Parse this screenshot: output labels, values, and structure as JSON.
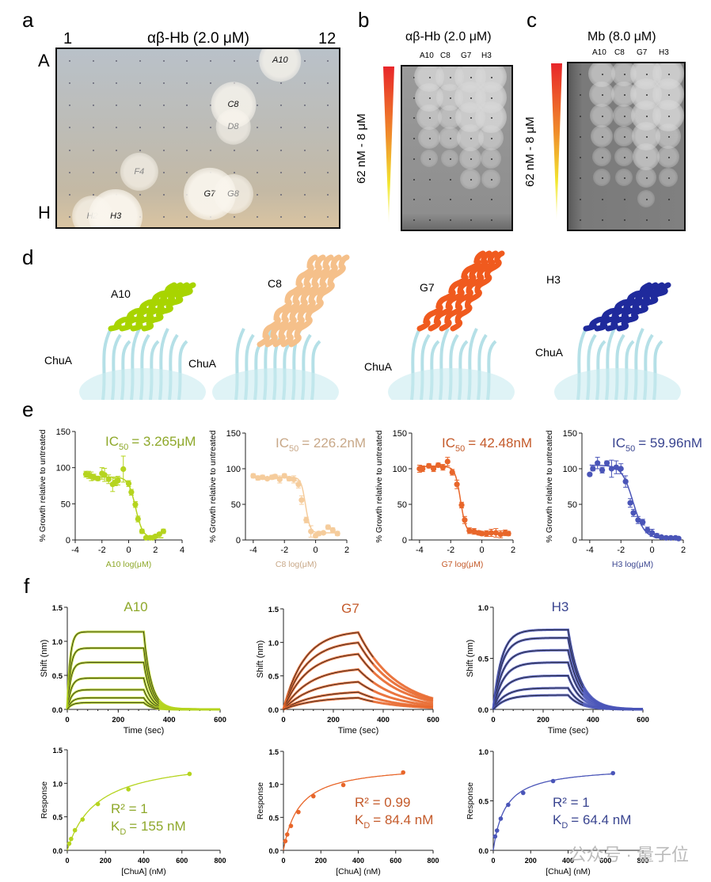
{
  "panels": {
    "a": {
      "letter": "a",
      "title": "αβ-Hb (2.0 μM)",
      "col_start": "1",
      "col_end": "12",
      "row_start": "A",
      "row_end": "H",
      "wells": [
        {
          "label": "A10",
          "row": 0,
          "col": 9,
          "strength": 0.6,
          "dark": true
        },
        {
          "label": "C8",
          "row": 2,
          "col": 7,
          "strength": 0.7,
          "dark": true
        },
        {
          "label": "D8",
          "row": 3,
          "col": 7,
          "strength": 0.35,
          "dark": false
        },
        {
          "label": "F4",
          "row": 5,
          "col": 3,
          "strength": 0.45,
          "dark": false
        },
        {
          "label": "G7",
          "row": 6,
          "col": 6,
          "strength": 0.95,
          "dark": true
        },
        {
          "label": "G8",
          "row": 6,
          "col": 7,
          "strength": 0.5,
          "dark": false
        },
        {
          "label": "H2",
          "row": 7,
          "col": 1,
          "strength": 0.55,
          "dark": false
        },
        {
          "label": "H3",
          "row": 7,
          "col": 2,
          "strength": 1.0,
          "dark": true
        }
      ]
    },
    "b": {
      "letter": "b",
      "title": "αβ-Hb (2.0 μM)",
      "gradient_label": "62 nM - 8 μM",
      "columns": [
        "A10",
        "C8",
        "G7",
        "H3"
      ],
      "halo_strength": [
        [
          0.9,
          0.8,
          0.6,
          0.4,
          0.1,
          0,
          0,
          0
        ],
        [
          0.8,
          0.7,
          0.5,
          0.4,
          0.1,
          0,
          0,
          0
        ],
        [
          1,
          1,
          0.9,
          0.7,
          0.4,
          0.3,
          0,
          0
        ],
        [
          1,
          1,
          1,
          0.6,
          0.3,
          0.2,
          0,
          0
        ]
      ]
    },
    "c": {
      "letter": "c",
      "title": "Mb (8.0 μM)",
      "gradient_label": "62 nM - 8 μM",
      "columns": [
        "A10",
        "C8",
        "G7",
        "H3"
      ],
      "halo_strength": [
        [
          0.7,
          0.6,
          0.5,
          0.4,
          0.2,
          0.1,
          0,
          0
        ],
        [
          0.6,
          0.6,
          0.4,
          0.3,
          0.2,
          0.1,
          0,
          0
        ],
        [
          1,
          1,
          0.9,
          0.8,
          0.7,
          0.3,
          0.1,
          0
        ],
        [
          1,
          1,
          1,
          0.6,
          0.4,
          0.2,
          0,
          0
        ]
      ]
    },
    "d": {
      "letter": "d",
      "structures": [
        {
          "binder": "A10",
          "target": "ChuA",
          "color": "#a8d400"
        },
        {
          "binder": "C8",
          "target": "ChuA",
          "color": "#f5c08a"
        },
        {
          "binder": "G7",
          "target": "ChuA",
          "color": "#f05a1e"
        },
        {
          "binder": "H3",
          "target": "ChuA",
          "color": "#1f2a9c"
        }
      ]
    },
    "e": {
      "letter": "e"
    },
    "f": {
      "letter": "f"
    }
  },
  "colors": {
    "A10": "#b5d41e",
    "A10_text": "#8ea82a",
    "C8": "#f5cc9c",
    "C8_text": "#c8a888",
    "G7": "#e8662a",
    "G7_text": "#c45a2a",
    "H3": "#4a55b8",
    "H3_text": "#3a4590"
  },
  "watermark": "公众号 · 量子位",
  "chart_data": [
    {
      "id": "e-A10",
      "type": "scatter",
      "title": "IC50 = 3.265μM",
      "ic50_prefix": "IC",
      "ic50_sub": "50",
      "ic50_value": "= 3.265μM",
      "xlabel": "A10 log(μM)",
      "ylabel": "% Growth relative to untreated",
      "xlim": [
        -4,
        4
      ],
      "xticks": [
        -4,
        -2,
        0,
        2,
        4
      ],
      "ylim": [
        0,
        150
      ],
      "yticks": [
        0,
        50,
        100,
        150
      ],
      "color_key": "A10",
      "x": [
        -3.2,
        -3.0,
        -2.8,
        -2.6,
        -2.3,
        -2.0,
        -1.8,
        -1.5,
        -1.2,
        -1.0,
        -0.8,
        -0.4,
        0,
        0.2,
        0.5,
        0.7,
        1.0,
        1.3,
        1.6,
        1.8,
        2.0,
        2.3,
        2.6
      ],
      "y": [
        91,
        90,
        88,
        87,
        85,
        92,
        90,
        84,
        77,
        80,
        82,
        98,
        78,
        66,
        49,
        29,
        12,
        3,
        3,
        3,
        5,
        8,
        12
      ],
      "err": [
        4,
        5,
        6,
        4,
        3,
        8,
        9,
        6,
        10,
        5,
        6,
        18,
        4,
        4,
        4,
        4,
        3,
        2,
        2,
        2,
        2,
        2,
        3
      ],
      "fit": {
        "top": 87,
        "bottom": 3,
        "logic50": 0.514,
        "hill": -1.6
      }
    },
    {
      "id": "e-C8",
      "type": "scatter",
      "title": "IC50 = 226.2nM",
      "ic50_prefix": "IC",
      "ic50_sub": "50",
      "ic50_value": "= 226.2nM",
      "xlabel": "C8 log(μM)",
      "ylabel": "% Growth relative to untreated",
      "xlim": [
        -4.5,
        2
      ],
      "xticks": [
        -4,
        -2,
        0,
        2
      ],
      "ylim": [
        0,
        150
      ],
      "yticks": [
        0,
        50,
        100,
        150
      ],
      "color_key": "C8",
      "x": [
        -4.0,
        -3.7,
        -3.4,
        -3.1,
        -2.8,
        -2.6,
        -2.3,
        -2.0,
        -1.7,
        -1.4,
        -1.1,
        -0.9,
        -0.6,
        -0.3,
        0,
        0.2,
        0.5,
        0.8,
        1.1,
        1.4
      ],
      "y": [
        90,
        87,
        88,
        86,
        88,
        89,
        85,
        90,
        86,
        85,
        78,
        56,
        28,
        12,
        6,
        9,
        10,
        18,
        14,
        9
      ],
      "err": [
        3,
        3,
        3,
        2,
        3,
        3,
        5,
        3,
        3,
        5,
        5,
        6,
        4,
        8,
        3,
        3,
        2,
        3,
        3,
        3
      ],
      "fit": {
        "top": 88,
        "bottom": 10,
        "logic50": -0.645,
        "hill": -3.0
      }
    },
    {
      "id": "e-G7",
      "type": "scatter",
      "title": "IC50 = 42.48nM",
      "ic50_prefix": "IC",
      "ic50_sub": "50",
      "ic50_value": "= 42.48nM",
      "xlabel": "G7 log(μM)",
      "ylabel": "% Growth relative to untreated",
      "xlim": [
        -4.5,
        2
      ],
      "xticks": [
        -4,
        -2,
        0,
        2
      ],
      "ylim": [
        0,
        150
      ],
      "yticks": [
        0,
        50,
        100,
        150
      ],
      "color_key": "G7",
      "x": [
        -4.0,
        -3.8,
        -3.4,
        -3.1,
        -2.8,
        -2.5,
        -2.2,
        -1.9,
        -1.6,
        -1.3,
        -1.1,
        -0.8,
        -0.5,
        -0.2,
        0,
        0.3,
        0.6,
        0.9,
        1.2,
        1.5,
        1.7
      ],
      "y": [
        100,
        100,
        104,
        100,
        105,
        102,
        110,
        95,
        78,
        49,
        28,
        13,
        12,
        10,
        9,
        9,
        10,
        10,
        8,
        10,
        9
      ],
      "err": [
        5,
        4,
        3,
        4,
        3,
        4,
        6,
        4,
        6,
        4,
        5,
        4,
        4,
        3,
        3,
        4,
        5,
        6,
        5,
        4,
        3
      ],
      "fit": {
        "top": 103,
        "bottom": 9,
        "logic50": -1.372,
        "hill": -2.5
      }
    },
    {
      "id": "e-H3",
      "type": "scatter",
      "title": "IC50 = 59.96nM",
      "ic50_prefix": "IC",
      "ic50_sub": "50",
      "ic50_value": "= 59.96nM",
      "xlabel": "H3 log(μM)",
      "ylabel": "% Growth relative to untreated",
      "xlim": [
        -4.5,
        2
      ],
      "xticks": [
        -4,
        -2,
        0,
        2
      ],
      "ylim": [
        0,
        150
      ],
      "yticks": [
        0,
        50,
        100,
        150
      ],
      "color_key": "H3",
      "x": [
        -4.0,
        -3.8,
        -3.5,
        -3.2,
        -2.9,
        -2.6,
        -2.3,
        -2.0,
        -1.7,
        -1.4,
        -1.2,
        -0.9,
        -0.6,
        -0.3,
        0,
        0.3,
        0.6,
        0.9,
        1.2,
        1.5,
        1.7
      ],
      "y": [
        92,
        100,
        108,
        98,
        108,
        100,
        102,
        100,
        82,
        52,
        38,
        28,
        25,
        14,
        10,
        6,
        4,
        3,
        3,
        3,
        2
      ],
      "err": [
        2,
        3,
        8,
        4,
        3,
        12,
        9,
        7,
        8,
        6,
        5,
        5,
        4,
        4,
        5,
        3,
        2,
        2,
        2,
        2,
        2
      ],
      "fit": {
        "top": 105,
        "bottom": 2,
        "logic50": -1.222,
        "hill": -1.2
      }
    },
    {
      "id": "f-A10-sensorgram",
      "type": "line",
      "title": "A10",
      "xlabel": "Time (sec)",
      "ylabel": "Shift (nm)",
      "xlim": [
        0,
        600
      ],
      "xticks": [
        0,
        200,
        400,
        600
      ],
      "ylim": [
        0,
        1.5
      ],
      "yticks": [
        0.0,
        0.5,
        1.0,
        1.5
      ],
      "color_key": "A10",
      "assoc_end": 300,
      "kon_rate": 0.09,
      "koff_rate": 0.035,
      "plateaus": [
        1.14,
        0.9,
        0.69,
        0.46,
        0.29,
        0.17,
        0.1
      ]
    },
    {
      "id": "f-G7-sensorgram",
      "type": "line",
      "title": "G7",
      "xlabel": "Time (sec)",
      "ylabel": "Shift (nm)",
      "xlim": [
        0,
        600
      ],
      "xticks": [
        0,
        200,
        400,
        600
      ],
      "ylim": [
        0,
        1.5
      ],
      "yticks": [
        0.0,
        0.5,
        1.0,
        1.5
      ],
      "color_key": "G7",
      "assoc_end": 300,
      "kon_rate": 0.012,
      "koff_rate": 0.0065,
      "plateaus": [
        1.18,
        1.03,
        0.86,
        0.63,
        0.44,
        0.28,
        0.19
      ]
    },
    {
      "id": "f-H3-sensorgram",
      "type": "line",
      "title": "H3",
      "xlabel": "Time (sec)",
      "ylabel": "Shift (nm)",
      "xlim": [
        0,
        600
      ],
      "xticks": [
        0,
        200,
        400,
        600
      ],
      "ylim": [
        0,
        1.0
      ],
      "yticks": [
        0.0,
        0.5,
        1.0
      ],
      "color_key": "H3",
      "assoc_end": 300,
      "kon_rate": 0.03,
      "koff_rate": 0.02,
      "plateaus": [
        0.78,
        0.7,
        0.58,
        0.46,
        0.33,
        0.21,
        0.14
      ]
    },
    {
      "id": "f-A10-steady",
      "type": "scatter",
      "xlabel": "[ChuA] (nM)",
      "ylabel": "Response",
      "xlim": [
        0,
        800
      ],
      "xticks": [
        0,
        200,
        400,
        600,
        800
      ],
      "ylim": [
        0,
        1.5
      ],
      "yticks": [
        0.0,
        0.5,
        1.0,
        1.5
      ],
      "color_key": "A10",
      "r2": "R² = 1",
      "kd_prefix": "K",
      "kd_sub": "D",
      "kd_value": "= 155 nM",
      "x": [
        10,
        20,
        40,
        80,
        160,
        320,
        640
      ],
      "y": [
        0.1,
        0.17,
        0.3,
        0.46,
        0.69,
        0.91,
        1.14
      ],
      "fit": {
        "bmax": 1.41,
        "kd": 155
      }
    },
    {
      "id": "f-G7-steady",
      "type": "scatter",
      "xlabel": "[ChuA] (nM)",
      "ylabel": "Response",
      "xlim": [
        0,
        800
      ],
      "xticks": [
        0,
        200,
        400,
        600,
        800
      ],
      "ylim": [
        0,
        1.5
      ],
      "yticks": [
        0.0,
        0.5,
        1.0,
        1.5
      ],
      "color_key": "G7",
      "r2": "R² = 0.99",
      "kd_prefix": "K",
      "kd_sub": "D",
      "kd_value": "= 84.4 nM",
      "x": [
        10,
        20,
        40,
        80,
        160,
        320,
        640
      ],
      "y": [
        0.14,
        0.24,
        0.37,
        0.58,
        0.82,
        0.99,
        1.18
      ],
      "fit": {
        "bmax": 1.31,
        "kd": 84.4
      }
    },
    {
      "id": "f-H3-steady",
      "type": "scatter",
      "xlabel": "[ChuA] (nM)",
      "ylabel": "Response",
      "xlim": [
        0,
        800
      ],
      "xticks": [
        0,
        200,
        400,
        600,
        800
      ],
      "ylim": [
        0,
        1.0
      ],
      "yticks": [
        0.0,
        0.5,
        1.0
      ],
      "color_key": "H3",
      "r2": "R² = 1",
      "kd_prefix": "K",
      "kd_sub": "D",
      "kd_value": "= 64.4 nM",
      "x": [
        10,
        20,
        40,
        80,
        160,
        320,
        640
      ],
      "y": [
        0.14,
        0.2,
        0.32,
        0.46,
        0.58,
        0.7,
        0.78
      ],
      "fit": {
        "bmax": 0.85,
        "kd": 64.4
      }
    }
  ]
}
